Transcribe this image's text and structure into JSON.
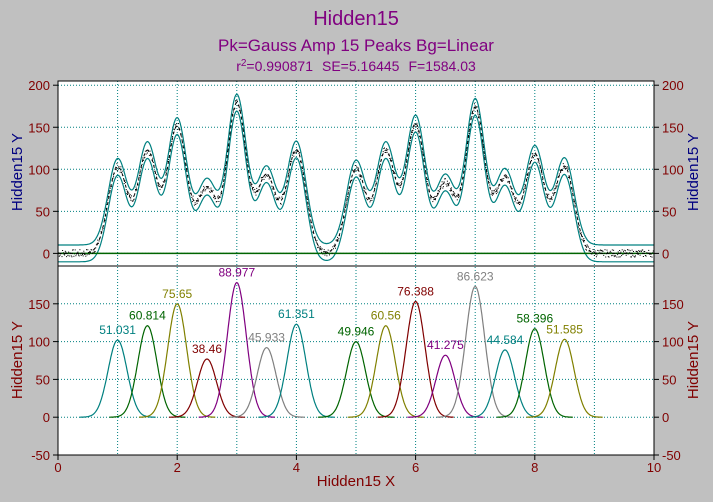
{
  "chart_data": {
    "type": "line",
    "title": "Hidden15",
    "subtitle": "Pk=Gauss Amp  15 Peaks  Bg=Linear",
    "stats": {
      "r2_label": "r",
      "r2_sup": "2",
      "r2_value": "=0.990871",
      "se": "SE=5.16445",
      "f": "F=1584.03"
    },
    "xlabel": "Hidden15 X",
    "xlim": [
      0,
      10
    ],
    "x_ticks": [
      "0",
      "2",
      "4",
      "6",
      "8",
      "10"
    ],
    "top_panel": {
      "ylabel": "Hidden15 Y",
      "ylim": [
        -15,
        205
      ],
      "y_ticks": [
        "0",
        "50",
        "100",
        "150",
        "200"
      ],
      "series": [
        {
          "name": "data points",
          "style": "dots",
          "color": "#000000"
        },
        {
          "name": "fit",
          "style": "dashed",
          "color": "#000000"
        },
        {
          "name": "confidence band",
          "style": "line",
          "color": "#008080"
        },
        {
          "name": "baseline",
          "style": "line",
          "color": "#006400"
        }
      ],
      "baseline": 0,
      "confidence_halfwidth": 10
    },
    "bottom_panel": {
      "ylabel": "Hidden15 Y",
      "ylim": [
        -50,
        200
      ],
      "y_ticks": [
        "-50",
        "0",
        "50",
        "100",
        "150"
      ],
      "peaks": [
        {
          "center": 1.0,
          "amp": 102,
          "label": "51.031",
          "color": "#008080"
        },
        {
          "center": 1.5,
          "amp": 121,
          "label": "60.814",
          "color": "#006400"
        },
        {
          "center": 2.0,
          "amp": 150,
          "label": "75.65",
          "color": "#808000"
        },
        {
          "center": 2.5,
          "amp": 77,
          "label": "38.46",
          "color": "#800000"
        },
        {
          "center": 3.0,
          "amp": 178,
          "label": "88.977",
          "color": "#800080"
        },
        {
          "center": 3.5,
          "amp": 92,
          "label": "45.933",
          "color": "#808080"
        },
        {
          "center": 4.0,
          "amp": 123,
          "label": "61.351",
          "color": "#008080"
        },
        {
          "center": 5.0,
          "amp": 100,
          "label": "49.946",
          "color": "#006400"
        },
        {
          "center": 5.5,
          "amp": 121,
          "label": "60.56",
          "color": "#808000"
        },
        {
          "center": 6.0,
          "amp": 153,
          "label": "76.388",
          "color": "#800000"
        },
        {
          "center": 6.5,
          "amp": 82,
          "label": "41.275",
          "color": "#800080"
        },
        {
          "center": 7.0,
          "amp": 173,
          "label": "86.623",
          "color": "#808080"
        },
        {
          "center": 7.5,
          "amp": 89,
          "label": "44.584",
          "color": "#008080"
        },
        {
          "center": 8.0,
          "amp": 117,
          "label": "58.396",
          "color": "#006400"
        },
        {
          "center": 8.5,
          "amp": 103,
          "label": "51.585",
          "color": "#808000"
        }
      ],
      "sigma": 0.16
    },
    "grid": true,
    "colors": {
      "title": "#800080",
      "axis_title": "#000080",
      "tick": "#800000",
      "stats": "#800080",
      "grid": "#008080"
    }
  }
}
